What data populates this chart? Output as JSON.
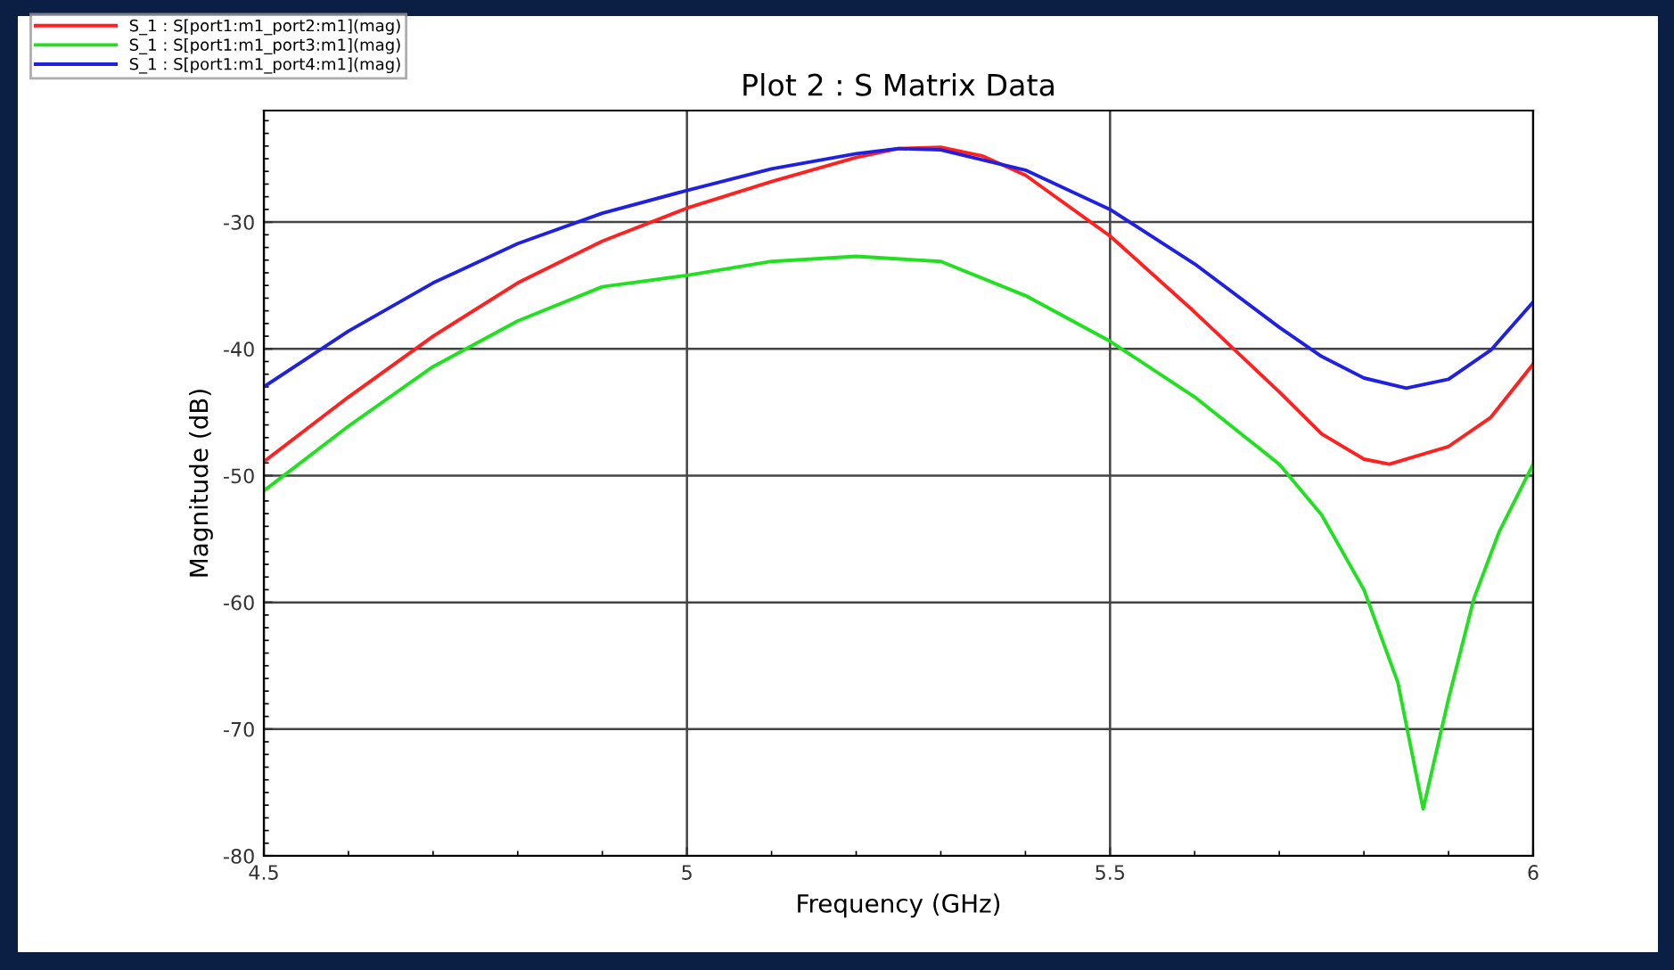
{
  "chart_data": {
    "type": "line",
    "title": "Plot 2 : S Matrix Data",
    "xlabel": "Frequency (GHz)",
    "ylabel": "Magnitude (dB)",
    "xlim": [
      4.5,
      6
    ],
    "xticks": [
      4.5,
      5,
      5.5,
      6
    ],
    "ylim": [
      -80,
      -21.2
    ],
    "yticks": [
      -80,
      -70,
      -60,
      -50,
      -40,
      -30
    ],
    "grid": true,
    "legend": "top left",
    "marker": "none",
    "line_style": "solid",
    "series": [
      {
        "name": "S_1 : S[port1:m1_port2:m1](mag)",
        "color": "#ff2020",
        "x": [
          4.5,
          4.6,
          4.7,
          4.8,
          4.9,
          5.0,
          5.1,
          5.2,
          5.25,
          5.3,
          5.35,
          5.4,
          5.5,
          5.6,
          5.7,
          5.75,
          5.8,
          5.83,
          5.9,
          5.95,
          6.0
        ],
        "values": [
          -48.9,
          -43.8,
          -39.0,
          -34.8,
          -31.5,
          -28.9,
          -26.8,
          -24.9,
          -24.2,
          -24.1,
          -24.8,
          -26.3,
          -31.1,
          -37.1,
          -43.4,
          -46.7,
          -48.7,
          -49.1,
          -47.7,
          -45.4,
          -41.2
        ]
      },
      {
        "name": "S_1 : S[port1:m1_port3:m1](mag)",
        "color": "#20e020",
        "x": [
          4.5,
          4.6,
          4.7,
          4.8,
          4.9,
          5.0,
          5.1,
          5.2,
          5.3,
          5.4,
          5.5,
          5.6,
          5.7,
          5.75,
          5.8,
          5.84,
          5.87,
          5.9,
          5.93,
          5.96,
          6.0
        ],
        "values": [
          -51.2,
          -46.1,
          -41.4,
          -37.8,
          -35.1,
          -34.2,
          -33.1,
          -32.7,
          -33.1,
          -35.8,
          -39.4,
          -43.8,
          -49.1,
          -53.1,
          -59.0,
          -66.3,
          -76.3,
          -67.6,
          -59.7,
          -54.4,
          -49.1
        ]
      },
      {
        "name": "S_1 : S[port1:m1_port4:m1](mag)",
        "color": "#2020e0",
        "x": [
          4.5,
          4.6,
          4.7,
          4.8,
          4.9,
          5.0,
          5.1,
          5.2,
          5.25,
          5.3,
          5.4,
          5.5,
          5.6,
          5.7,
          5.75,
          5.8,
          5.85,
          5.9,
          5.95,
          6.0
        ],
        "values": [
          -43.0,
          -38.6,
          -34.8,
          -31.7,
          -29.3,
          -27.5,
          -25.8,
          -24.6,
          -24.2,
          -24.3,
          -25.9,
          -29.0,
          -33.3,
          -38.3,
          -40.6,
          -42.3,
          -43.1,
          -42.4,
          -40.1,
          -36.3
        ]
      }
    ]
  }
}
